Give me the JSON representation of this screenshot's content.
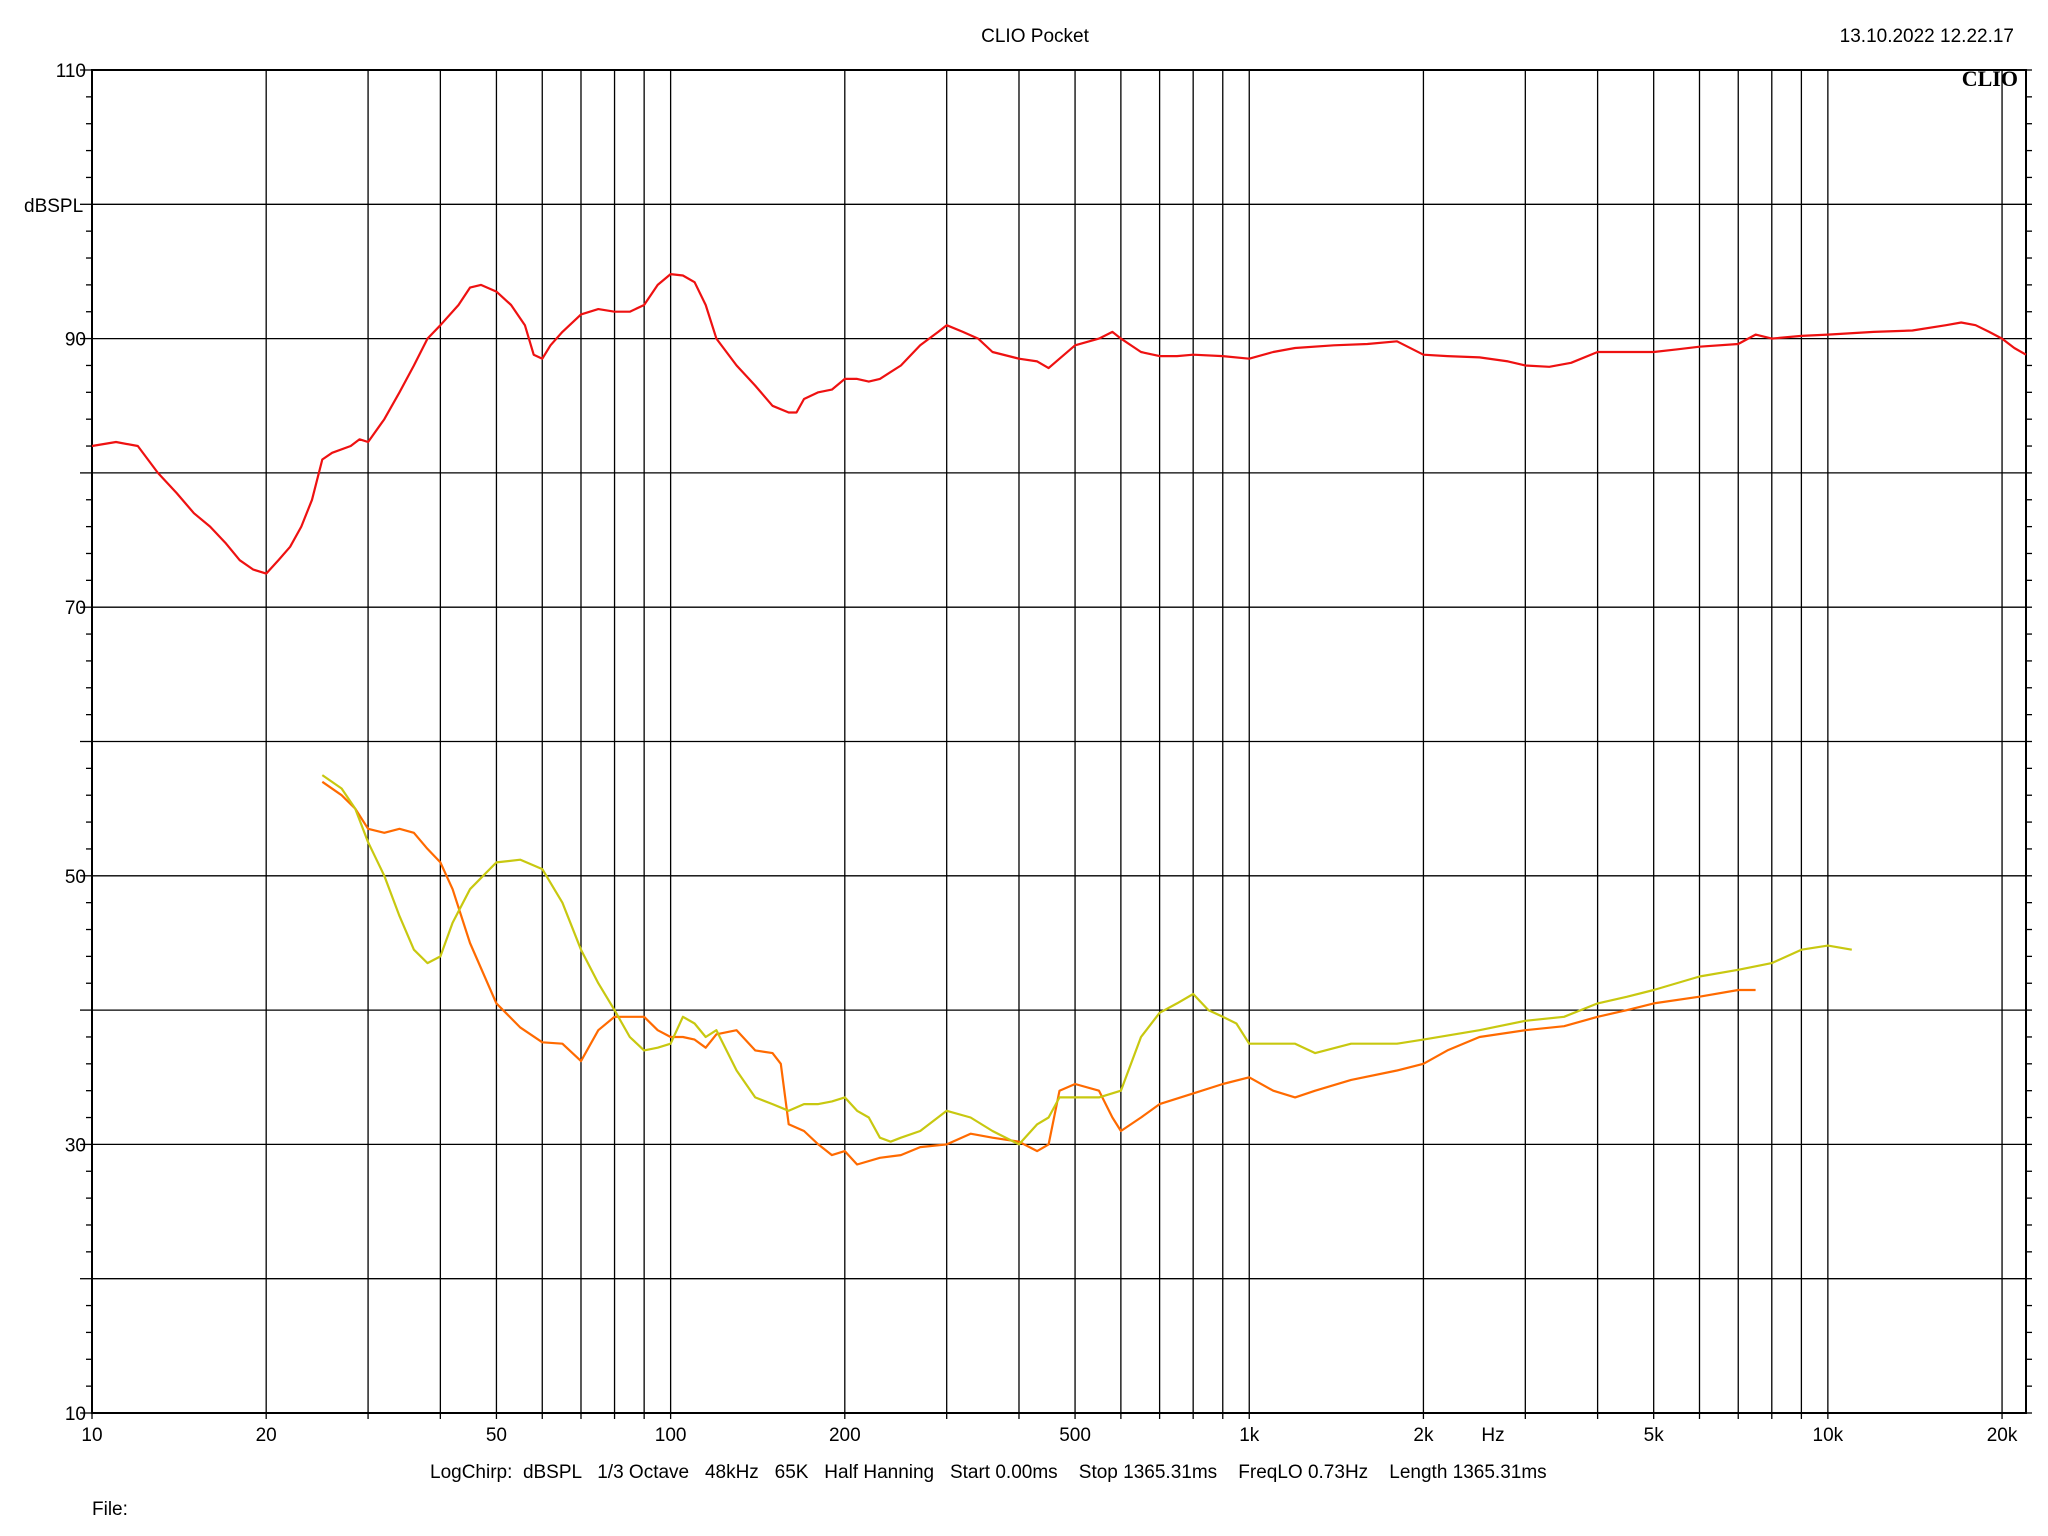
{
  "header": {
    "title": "CLIO Pocket",
    "timestamp": "13.10.2022 12.22.17",
    "logo": "CLIO"
  },
  "footer": {
    "settings": "LogChirp:  dBSPL   1/3 Octave   48kHz   65K   Half Hanning   Start 0.00ms    Stop 1365.31ms    FreqLO 0.73Hz    Length 1365.31ms",
    "file_label": "File:"
  },
  "colors": {
    "background": "#ffffff",
    "grid": "#000000",
    "red": "#ee1111",
    "orange": "#ff6a00",
    "yellow": "#c8c810"
  },
  "chart_data": {
    "type": "line",
    "x_scale": "log",
    "xlim": [
      10,
      22000
    ],
    "ylim": [
      10,
      110
    ],
    "ylabel": "dBSPL",
    "xlabel": "Hz",
    "grid": true,
    "y_ticks": [
      10,
      30,
      50,
      70,
      90,
      110
    ],
    "x_ticks": [
      {
        "value": 10,
        "label": "10"
      },
      {
        "value": 20,
        "label": "20"
      },
      {
        "value": 50,
        "label": "50"
      },
      {
        "value": 100,
        "label": "100"
      },
      {
        "value": 200,
        "label": "200"
      },
      {
        "value": 500,
        "label": "500"
      },
      {
        "value": 1000,
        "label": "1k"
      },
      {
        "value": 2000,
        "label": "2k"
      },
      {
        "value": 5000,
        "label": "5k"
      },
      {
        "value": 10000,
        "label": "10k"
      },
      {
        "value": 20000,
        "label": "20k"
      }
    ],
    "series": [
      {
        "color": "red",
        "points": [
          [
            10,
            82
          ],
          [
            11,
            82.3
          ],
          [
            12,
            82
          ],
          [
            13,
            80
          ],
          [
            14,
            78.5
          ],
          [
            15,
            77
          ],
          [
            16,
            76
          ],
          [
            17,
            74.8
          ],
          [
            18,
            73.5
          ],
          [
            19,
            72.8
          ],
          [
            20,
            72.5
          ],
          [
            21,
            73.5
          ],
          [
            22,
            74.5
          ],
          [
            23,
            76
          ],
          [
            24,
            78
          ],
          [
            25,
            81
          ],
          [
            26,
            81.5
          ],
          [
            28,
            82
          ],
          [
            29,
            82.5
          ],
          [
            30,
            82.3
          ],
          [
            32,
            84
          ],
          [
            34,
            86
          ],
          [
            36,
            88
          ],
          [
            38,
            90
          ],
          [
            40,
            91
          ],
          [
            43,
            92.5
          ],
          [
            45,
            93.8
          ],
          [
            47,
            94
          ],
          [
            50,
            93.5
          ],
          [
            53,
            92.5
          ],
          [
            56,
            91
          ],
          [
            58,
            88.8
          ],
          [
            60,
            88.5
          ],
          [
            62,
            89.5
          ],
          [
            65,
            90.5
          ],
          [
            70,
            91.8
          ],
          [
            75,
            92.2
          ],
          [
            80,
            92
          ],
          [
            85,
            92
          ],
          [
            90,
            92.5
          ],
          [
            95,
            94
          ],
          [
            100,
            94.8
          ],
          [
            105,
            94.7
          ],
          [
            110,
            94.2
          ],
          [
            115,
            92.5
          ],
          [
            120,
            90
          ],
          [
            130,
            88
          ],
          [
            140,
            86.5
          ],
          [
            150,
            85
          ],
          [
            160,
            84.5
          ],
          [
            165,
            84.5
          ],
          [
            170,
            85.5
          ],
          [
            180,
            86
          ],
          [
            190,
            86.2
          ],
          [
            200,
            87
          ],
          [
            210,
            87
          ],
          [
            220,
            86.8
          ],
          [
            230,
            87
          ],
          [
            250,
            88
          ],
          [
            270,
            89.5
          ],
          [
            290,
            90.5
          ],
          [
            300,
            91
          ],
          [
            320,
            90.5
          ],
          [
            340,
            90
          ],
          [
            360,
            89
          ],
          [
            400,
            88.5
          ],
          [
            430,
            88.3
          ],
          [
            450,
            87.8
          ],
          [
            470,
            88.5
          ],
          [
            500,
            89.5
          ],
          [
            550,
            90
          ],
          [
            580,
            90.5
          ],
          [
            600,
            90
          ],
          [
            650,
            89
          ],
          [
            700,
            88.7
          ],
          [
            750,
            88.7
          ],
          [
            800,
            88.8
          ],
          [
            900,
            88.7
          ],
          [
            1000,
            88.5
          ],
          [
            1100,
            89
          ],
          [
            1200,
            89.3
          ],
          [
            1400,
            89.5
          ],
          [
            1600,
            89.6
          ],
          [
            1800,
            89.8
          ],
          [
            2000,
            88.8
          ],
          [
            2200,
            88.7
          ],
          [
            2500,
            88.6
          ],
          [
            2800,
            88.3
          ],
          [
            3000,
            88
          ],
          [
            3300,
            87.9
          ],
          [
            3600,
            88.2
          ],
          [
            4000,
            89
          ],
          [
            4500,
            89
          ],
          [
            5000,
            89
          ],
          [
            5500,
            89.2
          ],
          [
            6000,
            89.4
          ],
          [
            7000,
            89.6
          ],
          [
            7500,
            90.3
          ],
          [
            8000,
            90
          ],
          [
            9000,
            90.2
          ],
          [
            10000,
            90.3
          ],
          [
            12000,
            90.5
          ],
          [
            14000,
            90.6
          ],
          [
            16000,
            91
          ],
          [
            17000,
            91.2
          ],
          [
            18000,
            91
          ],
          [
            19000,
            90.5
          ],
          [
            20000,
            90
          ],
          [
            21000,
            89.3
          ],
          [
            22000,
            88.8
          ]
        ]
      },
      {
        "color": "orange",
        "points": [
          [
            25,
            57
          ],
          [
            27,
            56
          ],
          [
            28.5,
            55
          ],
          [
            30,
            53.5
          ],
          [
            32,
            53.2
          ],
          [
            34,
            53.5
          ],
          [
            36,
            53.2
          ],
          [
            38,
            52
          ],
          [
            40,
            51
          ],
          [
            42,
            49
          ],
          [
            45,
            45
          ],
          [
            50,
            40.5
          ],
          [
            55,
            38.7
          ],
          [
            60,
            37.6
          ],
          [
            65,
            37.5
          ],
          [
            70,
            36.2
          ],
          [
            75,
            38.5
          ],
          [
            80,
            39.5
          ],
          [
            85,
            39.5
          ],
          [
            90,
            39.5
          ],
          [
            95,
            38.5
          ],
          [
            100,
            38
          ],
          [
            105,
            38
          ],
          [
            110,
            37.8
          ],
          [
            115,
            37.2
          ],
          [
            120,
            38.2
          ],
          [
            130,
            38.5
          ],
          [
            140,
            37
          ],
          [
            150,
            36.8
          ],
          [
            155,
            36
          ],
          [
            160,
            31.5
          ],
          [
            170,
            31
          ],
          [
            180,
            30
          ],
          [
            190,
            29.2
          ],
          [
            200,
            29.5
          ],
          [
            210,
            28.5
          ],
          [
            230,
            29
          ],
          [
            250,
            29.2
          ],
          [
            270,
            29.8
          ],
          [
            300,
            30
          ],
          [
            330,
            30.8
          ],
          [
            360,
            30.5
          ],
          [
            400,
            30.2
          ],
          [
            430,
            29.5
          ],
          [
            450,
            30
          ],
          [
            470,
            34
          ],
          [
            500,
            34.5
          ],
          [
            550,
            34
          ],
          [
            580,
            32
          ],
          [
            600,
            31
          ],
          [
            650,
            32
          ],
          [
            700,
            33
          ],
          [
            800,
            33.8
          ],
          [
            900,
            34.5
          ],
          [
            1000,
            35
          ],
          [
            1100,
            34
          ],
          [
            1200,
            33.5
          ],
          [
            1300,
            34
          ],
          [
            1500,
            34.8
          ],
          [
            1800,
            35.5
          ],
          [
            2000,
            36
          ],
          [
            2200,
            37
          ],
          [
            2500,
            38
          ],
          [
            3000,
            38.5
          ],
          [
            3500,
            38.8
          ],
          [
            4000,
            39.5
          ],
          [
            4500,
            40
          ],
          [
            5000,
            40.5
          ],
          [
            6000,
            41
          ],
          [
            7000,
            41.5
          ],
          [
            7500,
            41.5
          ]
        ]
      },
      {
        "color": "yellow",
        "points": [
          [
            25,
            57.5
          ],
          [
            27,
            56.5
          ],
          [
            28.5,
            55
          ],
          [
            30,
            52.5
          ],
          [
            32,
            50
          ],
          [
            34,
            47
          ],
          [
            36,
            44.5
          ],
          [
            38,
            43.5
          ],
          [
            40,
            44
          ],
          [
            42,
            46.5
          ],
          [
            45,
            49
          ],
          [
            50,
            51
          ],
          [
            55,
            51.2
          ],
          [
            60,
            50.5
          ],
          [
            65,
            48
          ],
          [
            70,
            44.5
          ],
          [
            75,
            42
          ],
          [
            80,
            40
          ],
          [
            85,
            38
          ],
          [
            90,
            37
          ],
          [
            95,
            37.2
          ],
          [
            100,
            37.5
          ],
          [
            105,
            39.5
          ],
          [
            110,
            39
          ],
          [
            115,
            38
          ],
          [
            120,
            38.5
          ],
          [
            130,
            35.5
          ],
          [
            140,
            33.5
          ],
          [
            150,
            33
          ],
          [
            160,
            32.5
          ],
          [
            170,
            33
          ],
          [
            180,
            33
          ],
          [
            190,
            33.2
          ],
          [
            200,
            33.5
          ],
          [
            210,
            32.5
          ],
          [
            220,
            32
          ],
          [
            230,
            30.5
          ],
          [
            240,
            30.2
          ],
          [
            250,
            30.5
          ],
          [
            270,
            31
          ],
          [
            300,
            32.5
          ],
          [
            330,
            32
          ],
          [
            360,
            31
          ],
          [
            400,
            30
          ],
          [
            430,
            31.5
          ],
          [
            450,
            32
          ],
          [
            470,
            33.5
          ],
          [
            500,
            33.5
          ],
          [
            550,
            33.5
          ],
          [
            600,
            34
          ],
          [
            650,
            38
          ],
          [
            700,
            39.8
          ],
          [
            750,
            40.5
          ],
          [
            800,
            41.2
          ],
          [
            850,
            40
          ],
          [
            900,
            39.5
          ],
          [
            950,
            39
          ],
          [
            1000,
            37.5
          ],
          [
            1100,
            37.5
          ],
          [
            1200,
            37.5
          ],
          [
            1300,
            36.8
          ],
          [
            1500,
            37.5
          ],
          [
            1800,
            37.5
          ],
          [
            2000,
            37.8
          ],
          [
            2500,
            38.5
          ],
          [
            3000,
            39.2
          ],
          [
            3500,
            39.5
          ],
          [
            4000,
            40.5
          ],
          [
            4500,
            41
          ],
          [
            5000,
            41.5
          ],
          [
            6000,
            42.5
          ],
          [
            7000,
            43
          ],
          [
            8000,
            43.5
          ],
          [
            9000,
            44.5
          ],
          [
            10000,
            44.8
          ],
          [
            11000,
            44.5
          ]
        ]
      }
    ]
  }
}
